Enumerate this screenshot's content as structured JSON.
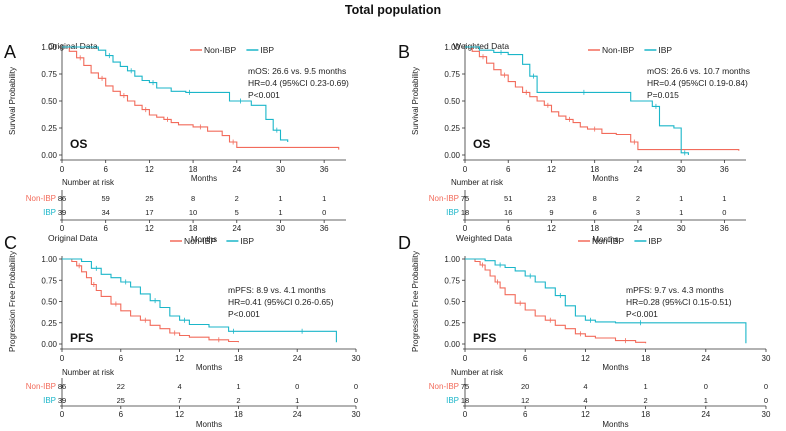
{
  "figure_title": "Total population",
  "colors": {
    "non_ibp": "#F26B5B",
    "ibp": "#1BB6C9",
    "axis": "#333333",
    "text": "#222222"
  },
  "chart_data": [
    {
      "panel_letter": "A",
      "subtitle": "Original Data",
      "type": "line",
      "endpoint": "OS",
      "ylabel": "Survival Probability",
      "xlabel": "Months",
      "xlim": [
        0,
        39
      ],
      "xticks": [
        0,
        6,
        12,
        18,
        24,
        30,
        36
      ],
      "ylim": [
        0,
        1
      ],
      "yticks": [
        "0.00",
        "0.25",
        "0.50",
        "0.75",
        "1.00"
      ],
      "legend": [
        "Non-IBP",
        "IBP"
      ],
      "annotation": [
        "mOS: 26.6 vs. 9.5 months",
        "HR=0.4 (95%CI 0.23-0.69)",
        "P<0.001"
      ],
      "series": [
        {
          "name": "Non-IBP",
          "x": [
            0,
            1,
            2,
            3,
            4,
            5,
            6,
            7,
            8,
            9,
            10,
            11,
            12,
            13,
            14,
            15,
            16,
            18,
            20,
            22,
            23,
            24,
            38
          ],
          "y": [
            1.0,
            0.96,
            0.9,
            0.83,
            0.76,
            0.71,
            0.64,
            0.59,
            0.55,
            0.5,
            0.46,
            0.42,
            0.37,
            0.35,
            0.33,
            0.3,
            0.28,
            0.26,
            0.22,
            0.18,
            0.12,
            0.07,
            0.05
          ]
        },
        {
          "name": "IBP",
          "x": [
            0,
            5,
            6,
            7,
            8,
            9,
            10,
            11,
            12,
            13,
            15,
            17,
            18,
            19,
            23,
            26,
            28,
            29,
            30,
            31
          ],
          "y": [
            1.0,
            0.97,
            0.92,
            0.86,
            0.82,
            0.78,
            0.73,
            0.69,
            0.67,
            0.62,
            0.59,
            0.58,
            0.58,
            0.58,
            0.5,
            0.46,
            0.33,
            0.23,
            0.14,
            0.12
          ]
        }
      ],
      "risk_title": "Number at risk",
      "risk_table": {
        "times": [
          0,
          6,
          12,
          18,
          24,
          30,
          36
        ],
        "rows": [
          {
            "name": "Non-IBP",
            "values": [
              "86",
              "59",
              "25",
              "8",
              "2",
              "1",
              "1"
            ]
          },
          {
            "name": "IBP",
            "values": [
              "39",
              "34",
              "17",
              "10",
              "5",
              "1",
              "0"
            ]
          }
        ]
      }
    },
    {
      "panel_letter": "B",
      "subtitle": "Weighted Data",
      "type": "line",
      "endpoint": "OS",
      "ylabel": "Survival Probability",
      "xlabel": "Months",
      "xlim": [
        0,
        39
      ],
      "xticks": [
        0,
        6,
        12,
        18,
        24,
        30,
        36
      ],
      "ylim": [
        0,
        1
      ],
      "yticks": [
        "0.00",
        "0.25",
        "0.50",
        "0.75",
        "1.00"
      ],
      "legend": [
        "Non-IBP",
        "IBP"
      ],
      "annotation": [
        "mOS: 26.6 vs. 10.7 months",
        "HR=0.4 (95%CI 0.19-0.84)",
        "P=0.015"
      ],
      "series": [
        {
          "name": "Non-IBP",
          "x": [
            0,
            1,
            2,
            3,
            4,
            5,
            6,
            7,
            8,
            9,
            10,
            11,
            12,
            13,
            14,
            15,
            16,
            17,
            19,
            21,
            23,
            24,
            38
          ],
          "y": [
            1.0,
            0.96,
            0.91,
            0.85,
            0.79,
            0.74,
            0.68,
            0.63,
            0.58,
            0.54,
            0.5,
            0.46,
            0.4,
            0.36,
            0.33,
            0.3,
            0.26,
            0.24,
            0.2,
            0.19,
            0.12,
            0.05,
            0.04
          ]
        },
        {
          "name": "IBP",
          "x": [
            0,
            2,
            4,
            6,
            8,
            9,
            10,
            12,
            15,
            18,
            23,
            26,
            27,
            29,
            30,
            31
          ],
          "y": [
            1.0,
            0.97,
            0.95,
            0.93,
            0.84,
            0.73,
            0.58,
            0.58,
            0.58,
            0.58,
            0.5,
            0.45,
            0.27,
            0.25,
            0.02,
            0.0
          ]
        }
      ],
      "risk_title": "Number at risk",
      "risk_table": {
        "times": [
          0,
          6,
          12,
          18,
          24,
          30,
          36
        ],
        "rows": [
          {
            "name": "Non-IBP",
            "values": [
              "75",
              "51",
              "23",
              "8",
              "2",
              "1",
              "1"
            ]
          },
          {
            "name": "IBP",
            "values": [
              "18",
              "16",
              "9",
              "6",
              "3",
              "1",
              "0"
            ]
          }
        ]
      }
    },
    {
      "panel_letter": "C",
      "subtitle": "Original Data",
      "type": "line",
      "endpoint": "PFS",
      "ylabel": "Progression Free Probability",
      "xlabel": "Months",
      "xlim": [
        0,
        30
      ],
      "xticks": [
        0,
        6,
        12,
        18,
        24,
        30
      ],
      "ylim": [
        0,
        1
      ],
      "yticks": [
        "0.00",
        "0.25",
        "0.50",
        "0.75",
        "1.00"
      ],
      "legend": [
        "Non-IBP",
        "IBP"
      ],
      "annotation": [
        "mPFS: 8.9 vs. 4.1 months",
        "HR=0.41 (95%CI 0.26-0.65)",
        "P<0.001"
      ],
      "series": [
        {
          "name": "Non-IBP",
          "x": [
            0,
            1,
            1.5,
            2,
            2.5,
            3,
            3.5,
            4,
            5,
            6,
            7,
            8,
            9,
            10,
            11,
            12,
            13,
            15,
            17,
            18
          ],
          "y": [
            1.0,
            0.97,
            0.92,
            0.85,
            0.78,
            0.7,
            0.63,
            0.56,
            0.47,
            0.39,
            0.33,
            0.28,
            0.22,
            0.18,
            0.13,
            0.1,
            0.08,
            0.05,
            0.03,
            0.02
          ]
        },
        {
          "name": "IBP",
          "x": [
            0,
            2,
            3,
            4,
            5,
            6,
            7,
            8,
            9,
            10,
            11,
            12,
            13,
            15,
            17,
            18,
            19,
            23,
            26,
            28
          ],
          "y": [
            1.0,
            0.97,
            0.89,
            0.82,
            0.78,
            0.73,
            0.67,
            0.59,
            0.51,
            0.43,
            0.33,
            0.28,
            0.23,
            0.2,
            0.15,
            0.15,
            0.15,
            0.15,
            0.15,
            0.02
          ]
        }
      ],
      "risk_title": "Number at risk",
      "risk_table": {
        "times": [
          0,
          6,
          12,
          18,
          24,
          30
        ],
        "rows": [
          {
            "name": "Non-IBP",
            "values": [
              "86",
              "22",
              "4",
              "1",
              "0",
              "0"
            ]
          },
          {
            "name": "IBP",
            "values": [
              "39",
              "25",
              "7",
              "2",
              "1",
              "0"
            ]
          }
        ]
      }
    },
    {
      "panel_letter": "D",
      "subtitle": "Weighted Data",
      "type": "line",
      "endpoint": "PFS",
      "ylabel": "Progression Free Probability",
      "xlabel": "Months",
      "xlim": [
        0,
        30
      ],
      "xticks": [
        0,
        6,
        12,
        18,
        24,
        30
      ],
      "ylim": [
        0,
        1
      ],
      "yticks": [
        "0.00",
        "0.25",
        "0.50",
        "0.75",
        "1.00"
      ],
      "legend": [
        "Non-IBP",
        "IBP"
      ],
      "annotation": [
        "mPFS: 9.7 vs. 4.3 months",
        "HR=0.28 (95%CI 0.15-0.51)",
        "P<0.001"
      ],
      "series": [
        {
          "name": "Non-IBP",
          "x": [
            0,
            1,
            1.5,
            2,
            2.5,
            3,
            3.5,
            4,
            5,
            6,
            7,
            8,
            9,
            10,
            11,
            12,
            13,
            15,
            17,
            18
          ],
          "y": [
            1.0,
            0.97,
            0.93,
            0.87,
            0.8,
            0.73,
            0.66,
            0.58,
            0.48,
            0.4,
            0.33,
            0.28,
            0.22,
            0.18,
            0.12,
            0.09,
            0.07,
            0.04,
            0.02,
            0.01
          ]
        },
        {
          "name": "IBP",
          "x": [
            0,
            2,
            3,
            4,
            5,
            6,
            7,
            8,
            9,
            10,
            11,
            12,
            13,
            15,
            17,
            18,
            24,
            28
          ],
          "y": [
            1.0,
            0.98,
            0.93,
            0.9,
            0.86,
            0.8,
            0.73,
            0.66,
            0.57,
            0.45,
            0.33,
            0.28,
            0.26,
            0.25,
            0.25,
            0.25,
            0.25,
            0.01
          ]
        }
      ],
      "risk_title": "Number at risk",
      "risk_table": {
        "times": [
          0,
          6,
          12,
          18,
          24,
          30
        ],
        "rows": [
          {
            "name": "Non-IBP",
            "values": [
              "75",
              "20",
              "4",
              "1",
              "0",
              "0"
            ]
          },
          {
            "name": "IBP",
            "values": [
              "18",
              "12",
              "4",
              "2",
              "1",
              "0"
            ]
          }
        ]
      }
    }
  ]
}
